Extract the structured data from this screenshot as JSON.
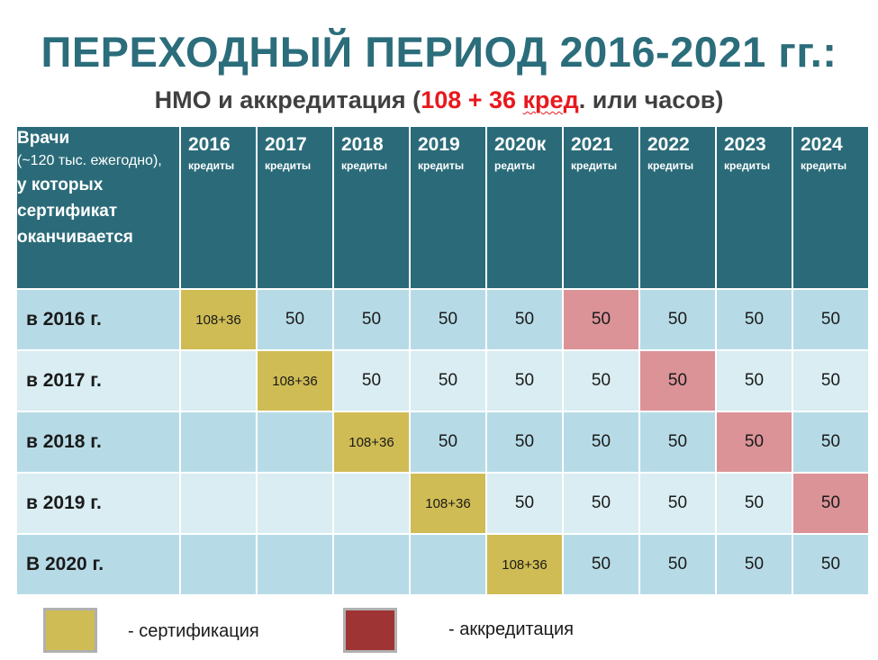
{
  "title": "ПЕРЕХОДНЫЙ ПЕРИОД 2016-2021 гг.:",
  "subtitle": {
    "prefix": "НМО и аккредитация (",
    "red_numbers": "108 + 36 ",
    "red_underlined": "кред",
    "suffix": ". или часов)"
  },
  "table": {
    "corner": {
      "line1": "Врачи",
      "line2": "(~120 тыс. ежегодно),",
      "line3": "у которых сертификат оканчивается"
    },
    "years": [
      {
        "year": "2016",
        "unit": "кредиты"
      },
      {
        "year": "2017",
        "unit": "кредиты"
      },
      {
        "year": "2018",
        "unit": "кредиты"
      },
      {
        "year": "2019",
        "unit": "кредиты"
      },
      {
        "year": "2020к",
        "unit": "редиты"
      },
      {
        "year": "2021",
        "unit": "кредиты"
      },
      {
        "year": "2022",
        "unit": "кредиты"
      },
      {
        "year": "2023",
        "unit": "кредиты"
      },
      {
        "year": "2024",
        "unit": "кредиты"
      }
    ],
    "rows": [
      {
        "label": "в 2016 г.",
        "cells": [
          "108+36",
          "50",
          "50",
          "50",
          "50",
          "50",
          "50",
          "50",
          "50"
        ]
      },
      {
        "label": "в 2017 г.",
        "cells": [
          "",
          "108+36",
          "50",
          "50",
          "50",
          "50",
          "50",
          "50",
          "50"
        ]
      },
      {
        "label": "в 2018 г.",
        "cells": [
          "",
          "",
          "108+36",
          "50",
          "50",
          "50",
          "50",
          "50",
          "50"
        ]
      },
      {
        "label": "в 2019 г.",
        "cells": [
          "",
          "",
          "",
          "108+36",
          "50",
          "50",
          "50",
          "50",
          "50"
        ]
      },
      {
        "label": "В 2020 г.",
        "cells": [
          "",
          "",
          "",
          "",
          "108+36",
          "50",
          "50",
          "50",
          "50"
        ]
      }
    ]
  },
  "legend": {
    "certification": {
      "label": "- сертификация",
      "color": "#cfbc54"
    },
    "accreditation": {
      "label": "- аккредитация",
      "color": "#9e3434"
    }
  },
  "colors": {
    "header": "#2b6b79",
    "title": "#2b6d7b",
    "row_dark": "#b7dbe6",
    "row_light": "#d9edf2",
    "accreditation_cell": "#db9398"
  }
}
